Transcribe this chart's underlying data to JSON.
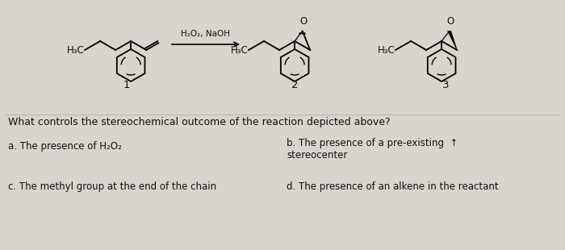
{
  "bg_color": "#d8d4ce",
  "question": "What controls the stereochemical outcome of the reaction depicted above?",
  "answer_a": "a. The presence of H₂O₂",
  "answer_b_line1": "b. The presence of a pre-existing  ↑",
  "answer_b_line2": "stereocenter",
  "answer_c": "c. The methyl group at the end of the chain",
  "answer_d": "d. The presence of an alkene in the reactant",
  "reagent": "H₂O₂, NaOH",
  "label1": "1",
  "label2": "2",
  "label3": "3",
  "h3c_label": "H₃C",
  "text_color": "#111111"
}
